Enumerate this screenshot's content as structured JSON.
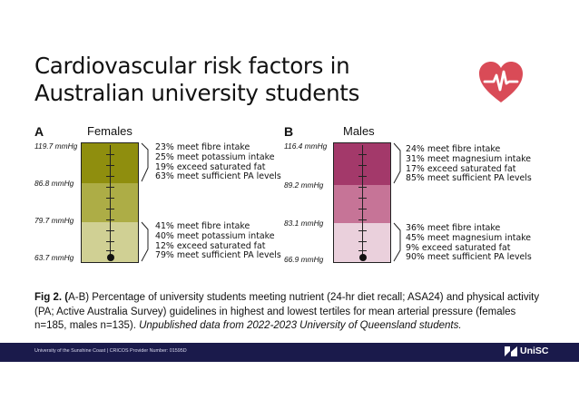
{
  "title": "Cardiovascular risk factors in Australian university students",
  "colors": {
    "female_top": "#8f8e0e",
    "female_mid": "#adad46",
    "female_low": "#d0d094",
    "male_top": "#a3396a",
    "male_mid": "#c67497",
    "male_low": "#ead0dc",
    "heart": "#d94b57",
    "footer": "#1a1a4b"
  },
  "panels": {
    "female": {
      "letter": "A",
      "title": "Females",
      "levels": [
        "119.7 mmHg",
        "86.8 mmHg",
        "79.7 mmHg",
        "63.7 mmHg"
      ],
      "highest": [
        "23% meet fibre intake",
        "25% meet potassium intake",
        "19% exceed saturated fat",
        "63% meet sufficient PA levels"
      ],
      "lowest": [
        "41% meet fibre intake",
        "40% meet potassium intake",
        "12% exceed saturated fat",
        "79% meet sufficient PA levels"
      ]
    },
    "male": {
      "letter": "B",
      "title": "Males",
      "levels": [
        "116.4 mmHg",
        "89.2 mmHg",
        "83.1 mmHg",
        "66.9 mmHg"
      ],
      "highest": [
        "24% meet fibre intake",
        "31% meet magnesium intake",
        "17% exceed saturated fat",
        "85% meet sufficient PA levels"
      ],
      "lowest": [
        "36% meet fibre intake",
        "45% meet magnesium intake",
        "9% exceed saturated fat",
        "90% meet sufficient PA levels"
      ]
    }
  },
  "caption": {
    "label": "Fig 2. (",
    "text": "A-B) Percentage of university students meeting nutrient (24-hr diet recall; ASA24) and physical activity (PA; Active Australia Survey) guidelines in highest and lowest tertiles for mean arterial pressure (females n=185, males n=135). ",
    "italic": "Unpublished data from 2022-2023 University of Queensland students."
  },
  "footer": {
    "text": "University of the Sunshine Coast  |  CRICOS Provider Number: 01595D",
    "logo": "UniSC"
  }
}
